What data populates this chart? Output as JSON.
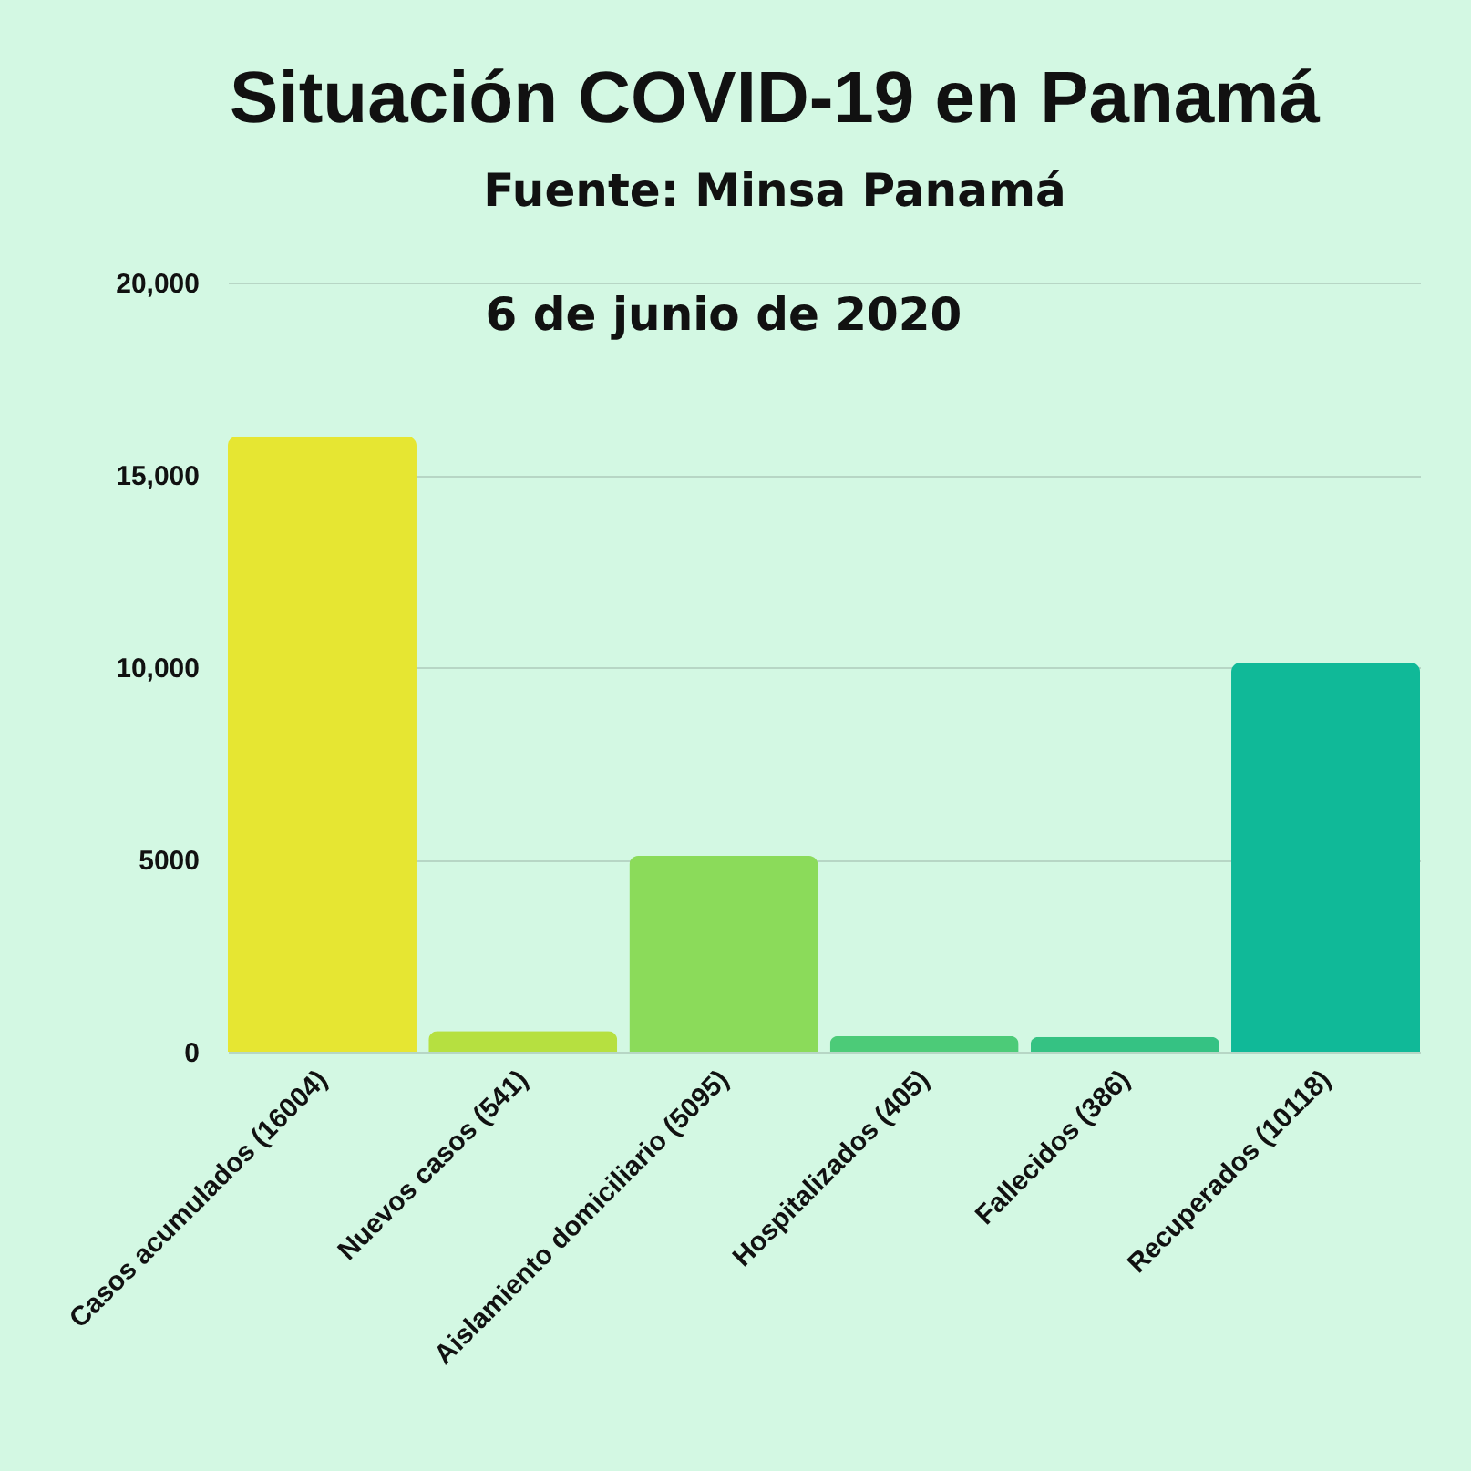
{
  "chart_data": {
    "type": "bar",
    "title": "Situación COVID-19 en Panamá",
    "subtitle": "Fuente: Minsa Panamá",
    "annotations": [
      "6 de junio de 2020"
    ],
    "categories": [
      "Casos acumulados (16004)",
      "Nuevos casos (541)",
      "Aislamiento domiciliario (5095)",
      "Hospitalizados (405)",
      "Fallecidos (386)",
      "Recuperados (10118)"
    ],
    "values": [
      16004,
      541,
      5095,
      405,
      386,
      10118
    ],
    "colors": [
      "#e6e632",
      "#b6e040",
      "#8bdb5a",
      "#4ccb78",
      "#35c283",
      "#10b998"
    ],
    "ylim": [
      0,
      20000
    ],
    "yticks": [
      0,
      5000,
      {
        "value": 10000,
        "label": "10,000"
      },
      {
        "value": 15000,
        "label": "15,000"
      },
      {
        "value": 20000,
        "label": "20,000"
      }
    ],
    "grid": "y"
  }
}
